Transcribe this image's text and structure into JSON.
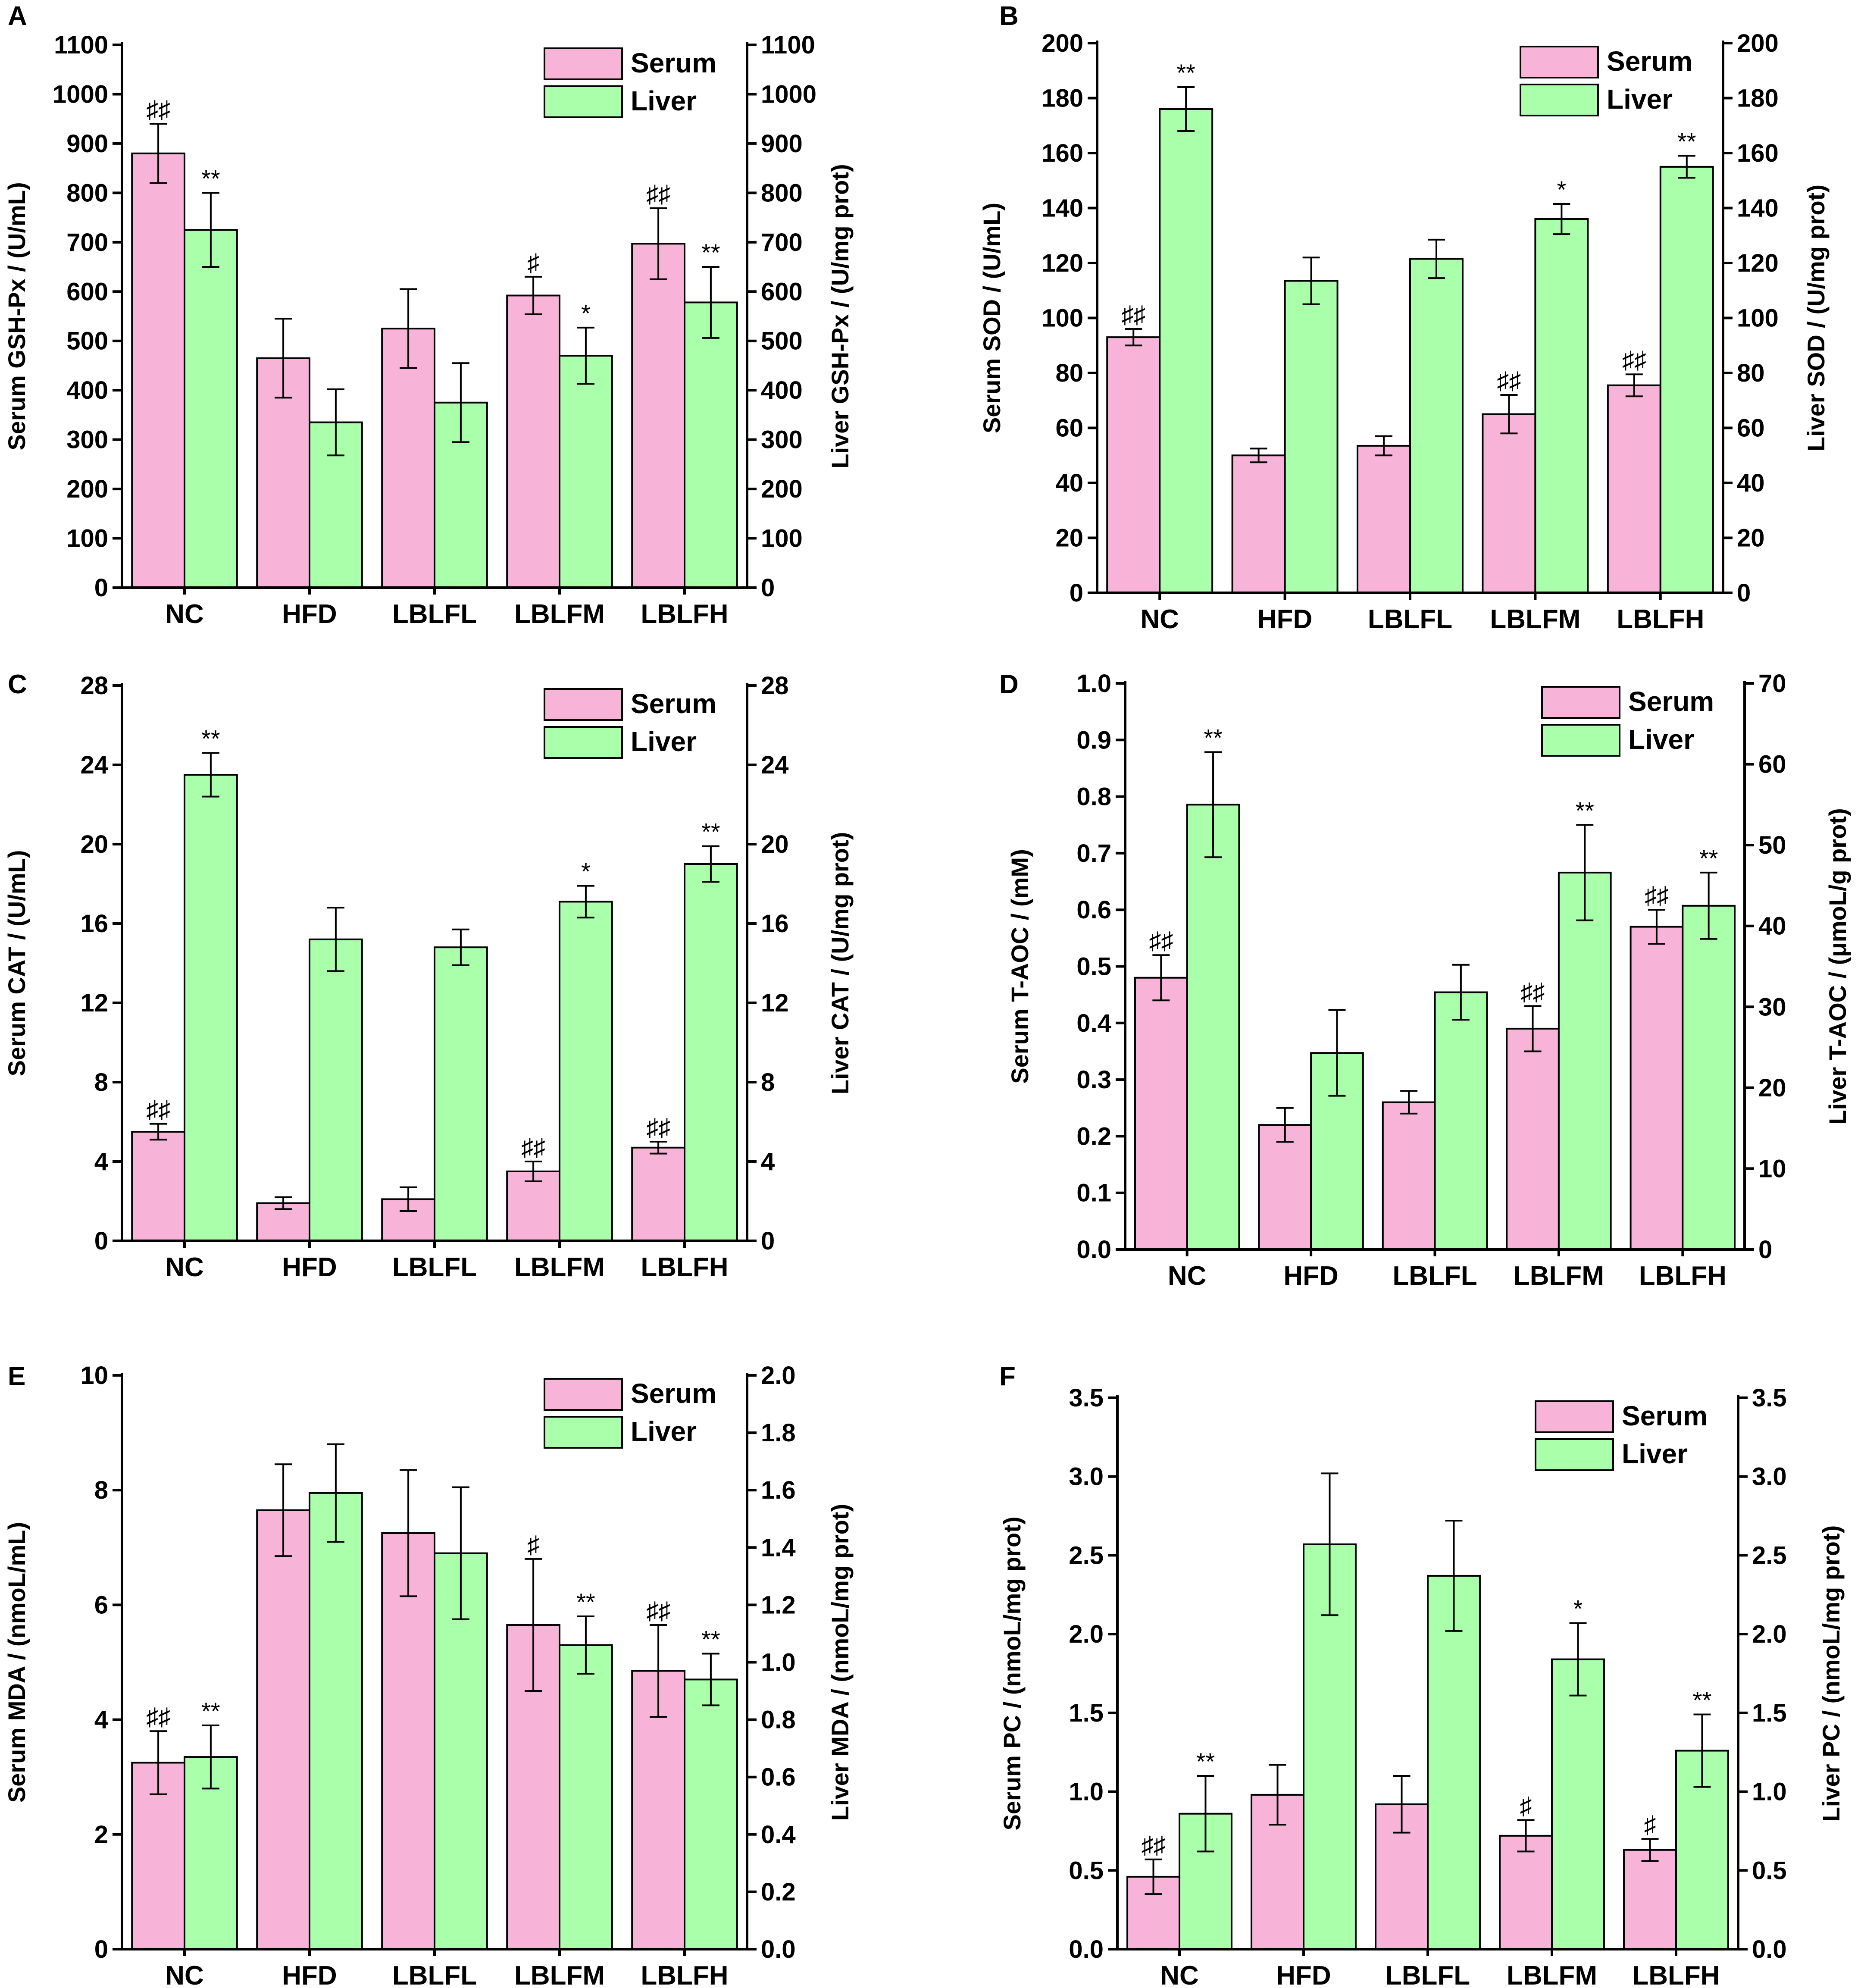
{
  "categories": [
    "NC",
    "HFD",
    "LBLFL",
    "LBLFM",
    "LBLFH"
  ],
  "legend": [
    "Serum",
    "Liver"
  ],
  "colors": {
    "serum": "#F8B3D8",
    "liver": "#AAFFAA",
    "axis": "#000000"
  },
  "chart_data": [
    {
      "panel": "A",
      "type": "bar",
      "categories": [
        "NC",
        "HFD",
        "LBLFL",
        "LBLFM",
        "LBLFH"
      ],
      "ylabel": "Serum GSH-Px / (U/mL)",
      "y2label": "Liver GSH-Px / (U/mg prot)",
      "ylim": [
        0,
        1100
      ],
      "y2lim": [
        0,
        1100
      ],
      "yticks": [
        0,
        100,
        200,
        300,
        400,
        500,
        600,
        700,
        800,
        900,
        1000,
        1100
      ],
      "y2ticks": [
        0,
        100,
        200,
        300,
        400,
        500,
        600,
        700,
        800,
        900,
        1000,
        1100
      ],
      "series": [
        {
          "name": "Serum",
          "axis": "left",
          "values": [
            880,
            465,
            525,
            592,
            697
          ],
          "errors": [
            60,
            80,
            80,
            38,
            72
          ],
          "sig": [
            "♯♯",
            "",
            "",
            "♯",
            "♯♯"
          ]
        },
        {
          "name": "Liver",
          "axis": "right",
          "values": [
            725,
            335,
            375,
            470,
            578
          ],
          "errors": [
            75,
            67,
            80,
            57,
            72
          ],
          "sig": [
            "**",
            "",
            "",
            "*",
            "**"
          ]
        }
      ]
    },
    {
      "panel": "B",
      "type": "bar",
      "categories": [
        "NC",
        "HFD",
        "LBLFL",
        "LBLFM",
        "LBLFH"
      ],
      "ylabel": "Serum SOD / (U/mL)",
      "y2label": "Liver SOD / (U/mg prot)",
      "ylim": [
        0,
        200
      ],
      "y2lim": [
        0,
        200
      ],
      "yticks": [
        0,
        20,
        40,
        60,
        80,
        100,
        120,
        140,
        160,
        180,
        200
      ],
      "y2ticks": [
        0,
        20,
        40,
        60,
        80,
        100,
        120,
        140,
        160,
        180,
        200
      ],
      "series": [
        {
          "name": "Serum",
          "axis": "left",
          "values": [
            93,
            50,
            53.5,
            65,
            75.5
          ],
          "errors": [
            3,
            2.5,
            3.5,
            7,
            4
          ],
          "sig": [
            "♯♯",
            "",
            "",
            "♯♯",
            "♯♯"
          ]
        },
        {
          "name": "Liver",
          "axis": "right",
          "values": [
            176,
            113.5,
            121.5,
            136,
            155
          ],
          "errors": [
            8,
            8.5,
            7,
            5.5,
            4
          ],
          "sig": [
            "**",
            "",
            "",
            "*",
            "**"
          ]
        }
      ]
    },
    {
      "panel": "C",
      "type": "bar",
      "categories": [
        "NC",
        "HFD",
        "LBLFL",
        "LBLFM",
        "LBLFH"
      ],
      "ylabel": "Serum CAT / (U/mL)",
      "y2label": "Liver CAT / (U/mg prot)",
      "ylim": [
        0,
        28
      ],
      "y2lim": [
        0,
        28
      ],
      "yticks": [
        0,
        4,
        8,
        12,
        16,
        20,
        24,
        28
      ],
      "y2ticks": [
        0,
        4,
        8,
        12,
        16,
        20,
        24,
        28
      ],
      "series": [
        {
          "name": "Serum",
          "axis": "left",
          "values": [
            5.5,
            1.9,
            2.1,
            3.5,
            4.7
          ],
          "errors": [
            0.4,
            0.3,
            0.6,
            0.5,
            0.3
          ],
          "sig": [
            "♯♯",
            "",
            "",
            "♯♯",
            "♯♯"
          ]
        },
        {
          "name": "Liver",
          "axis": "right",
          "values": [
            23.5,
            15.2,
            14.8,
            17.1,
            19.0
          ],
          "errors": [
            1.1,
            1.6,
            0.9,
            0.8,
            0.9
          ],
          "sig": [
            "**",
            "",
            "",
            "*",
            "**"
          ]
        }
      ]
    },
    {
      "panel": "D",
      "type": "bar",
      "categories": [
        "NC",
        "HFD",
        "LBLFL",
        "LBLFM",
        "LBLFH"
      ],
      "ylabel": "Serum T-AOC / (mM)",
      "y2label": "Liver T-AOC / (μmoL/g prot)",
      "ylim": [
        0,
        1.0
      ],
      "y2lim": [
        0,
        70
      ],
      "yticks": [
        "0.0",
        "0.1",
        "0.2",
        "0.3",
        "0.4",
        "0.5",
        "0.6",
        "0.7",
        "0.8",
        "0.9",
        "1.0"
      ],
      "y2ticks": [
        0,
        10,
        20,
        30,
        40,
        50,
        60,
        70
      ],
      "series": [
        {
          "name": "Serum",
          "axis": "left",
          "values": [
            0.48,
            0.22,
            0.26,
            0.39,
            0.57
          ],
          "errors": [
            0.04,
            0.03,
            0.02,
            0.04,
            0.03
          ],
          "sig": [
            "♯♯",
            "",
            "",
            "♯♯",
            "♯♯"
          ]
        },
        {
          "name": "Liver",
          "axis": "right",
          "values": [
            55.0,
            24.3,
            31.8,
            46.6,
            42.5
          ],
          "errors": [
            6.5,
            5.3,
            3.4,
            5.9,
            4.1
          ],
          "sig": [
            "**",
            "",
            "",
            "**",
            "**"
          ]
        }
      ]
    },
    {
      "panel": "E",
      "type": "bar",
      "categories": [
        "NC",
        "HFD",
        "LBLFL",
        "LBLFM",
        "LBLFH"
      ],
      "ylabel": "Serum MDA / (nmoL/mL)",
      "y2label": "Liver MDA / (nmoL/mg prot)",
      "ylim": [
        0,
        10
      ],
      "y2lim": [
        0,
        2.0
      ],
      "yticks": [
        0,
        2,
        4,
        6,
        8,
        10
      ],
      "y2ticks": [
        "0.0",
        "0.2",
        "0.4",
        "0.6",
        "0.8",
        "1.0",
        "1.2",
        "1.4",
        "1.6",
        "1.8",
        "2.0"
      ],
      "series": [
        {
          "name": "Serum",
          "axis": "left",
          "values": [
            3.25,
            7.65,
            7.25,
            5.65,
            4.85
          ],
          "errors": [
            0.55,
            0.8,
            1.1,
            1.15,
            0.8
          ],
          "sig": [
            "♯♯",
            "",
            "",
            "♯",
            "♯♯"
          ]
        },
        {
          "name": "Liver",
          "axis": "right",
          "values": [
            0.67,
            1.59,
            1.38,
            1.06,
            0.94
          ],
          "errors": [
            0.11,
            0.17,
            0.23,
            0.1,
            0.09
          ],
          "sig": [
            "**",
            "",
            "",
            "**",
            "**"
          ]
        }
      ]
    },
    {
      "panel": "F",
      "type": "bar",
      "categories": [
        "NC",
        "HFD",
        "LBLFL",
        "LBLFM",
        "LBLFH"
      ],
      "ylabel": "Serum PC / (nmoL/mg prot)",
      "y2label": "Liver PC / (nmoL/mg prot)",
      "ylim": [
        0,
        3.5
      ],
      "y2lim": [
        0,
        3.5
      ],
      "yticks": [
        "0.0",
        "0.5",
        "1.0",
        "1.5",
        "2.0",
        "2.5",
        "3.0",
        "3.5"
      ],
      "y2ticks": [
        "0.0",
        "0.5",
        "1.0",
        "1.5",
        "2.0",
        "2.5",
        "3.0",
        "3.5"
      ],
      "series": [
        {
          "name": "Serum",
          "axis": "left",
          "values": [
            0.46,
            0.98,
            0.92,
            0.72,
            0.63
          ],
          "errors": [
            0.11,
            0.19,
            0.18,
            0.1,
            0.07
          ],
          "sig": [
            "♯♯",
            "",
            "",
            "♯",
            "♯"
          ]
        },
        {
          "name": "Liver",
          "axis": "right",
          "values": [
            0.86,
            2.57,
            2.37,
            1.84,
            1.26
          ],
          "errors": [
            0.24,
            0.45,
            0.35,
            0.23,
            0.23
          ],
          "sig": [
            "**",
            "",
            "",
            "*",
            "**"
          ]
        }
      ]
    }
  ]
}
